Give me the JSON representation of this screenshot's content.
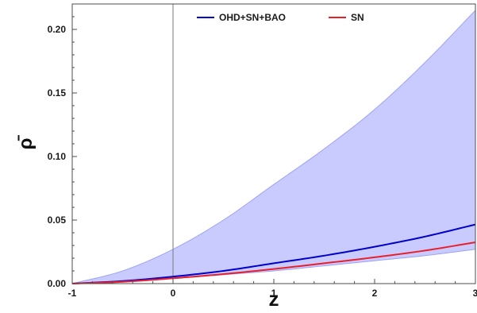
{
  "chart_data": {
    "type": "area",
    "title": "",
    "xlabel": "z",
    "ylabel": "ρ̄",
    "xlim": [
      -1,
      3
    ],
    "ylim": [
      0,
      0.22
    ],
    "grid": false,
    "legend_position": "top-center",
    "x_ticks": [
      -1,
      0,
      1,
      2,
      3
    ],
    "x_tick_labels": [
      "-1",
      "0",
      "1",
      "2",
      "3"
    ],
    "y_ticks": [
      0,
      0.05,
      0.1,
      0.15,
      0.2
    ],
    "y_tick_labels": [
      "0.00",
      "0.05",
      "0.10",
      "0.15",
      "0.20"
    ],
    "reference_lines": [
      {
        "orientation": "vertical",
        "x": 0,
        "color": "#777777"
      }
    ],
    "x": [
      -1,
      -0.5,
      0,
      0.5,
      1,
      1.5,
      2,
      2.5,
      3
    ],
    "bands": [
      {
        "color": "#c6c8ff",
        "edge_color": "#9ea3f2",
        "lower": [
          0,
          0.001,
          0.004,
          0.007,
          0.01,
          0.014,
          0.018,
          0.022,
          0.027
        ],
        "upper": [
          0,
          0.01,
          0.027,
          0.05,
          0.078,
          0.106,
          0.137,
          0.174,
          0.215
        ]
      }
    ],
    "series": [
      {
        "name": "OHD+SN+BAO",
        "color": "#0000cc",
        "values": [
          0,
          0.002,
          0.0055,
          0.01,
          0.016,
          0.022,
          0.029,
          0.037,
          0.0465
        ]
      },
      {
        "name": "SN",
        "color": "#e8202a",
        "values": [
          0,
          0.0015,
          0.0042,
          0.0075,
          0.0115,
          0.016,
          0.0207,
          0.026,
          0.0325
        ]
      }
    ]
  }
}
